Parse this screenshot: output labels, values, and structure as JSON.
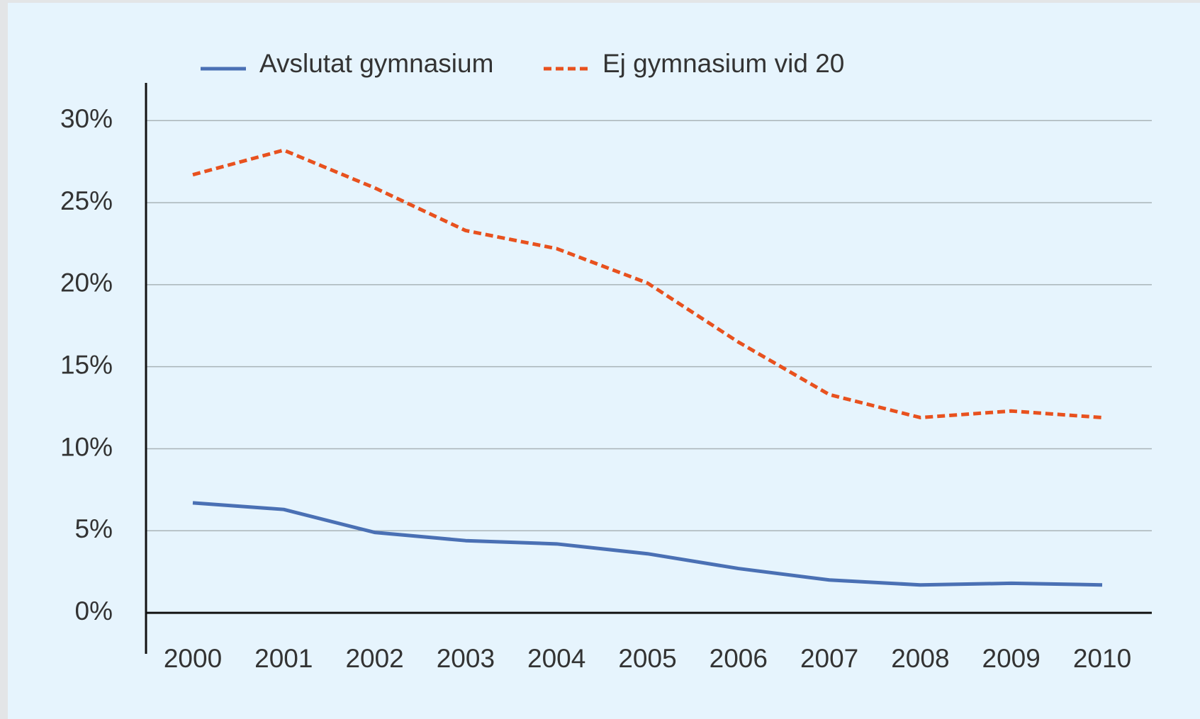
{
  "chart_data": {
    "type": "line",
    "categories": [
      "2000",
      "2001",
      "2002",
      "2003",
      "2004",
      "2005",
      "2006",
      "2007",
      "2008",
      "2009",
      "2010"
    ],
    "series": [
      {
        "name": "Avslutat gymnasium",
        "color": "#4a70b4",
        "dash": false,
        "values": [
          6.7,
          6.3,
          4.9,
          4.4,
          4.2,
          3.6,
          2.7,
          2.0,
          1.7,
          1.8,
          1.7
        ]
      },
      {
        "name": "Ej gymnasium vid 20",
        "color": "#e8511e",
        "dash": true,
        "values": [
          26.7,
          28.2,
          25.9,
          23.3,
          22.2,
          20.1,
          16.5,
          13.3,
          11.9,
          12.3,
          11.9
        ]
      }
    ],
    "ylim": [
      -2.5,
      32.3
    ],
    "yticks": [
      {
        "value": 0,
        "label": "0%"
      },
      {
        "value": 5,
        "label": "5%"
      },
      {
        "value": 10,
        "label": "10%"
      },
      {
        "value": 15,
        "label": "15%"
      },
      {
        "value": 20,
        "label": "20%"
      },
      {
        "value": 25,
        "label": "25%"
      },
      {
        "value": 30,
        "label": "30%"
      }
    ],
    "grid": true
  }
}
